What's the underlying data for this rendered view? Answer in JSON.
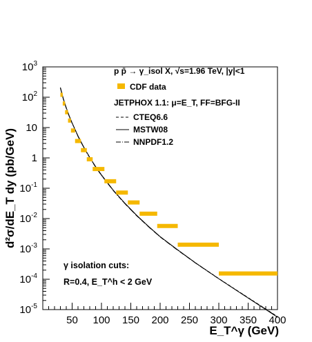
{
  "chart_data": {
    "type": "scatter",
    "xlabel": "E_T^γ (GeV)",
    "ylabel": "d²σ/dE_T dy (pb/GeV)",
    "xlim": [
      0,
      400
    ],
    "ylim": [
      1e-05,
      1000
    ],
    "y_scale": "log",
    "grid": false,
    "x_ticks": [
      50,
      100,
      150,
      200,
      250,
      300,
      350,
      400
    ],
    "y_ticks": [
      {
        "value": 1e-05,
        "base": "10",
        "exp": "-5"
      },
      {
        "value": 0.0001,
        "base": "10",
        "exp": "-4"
      },
      {
        "value": 0.001,
        "base": "10",
        "exp": "-3"
      },
      {
        "value": 0.01,
        "base": "10",
        "exp": "-2"
      },
      {
        "value": 0.1,
        "base": "10",
        "exp": "-1"
      },
      {
        "value": 1,
        "base": "1",
        "exp": ""
      },
      {
        "value": 10,
        "base": "10",
        "exp": ""
      },
      {
        "value": 100,
        "base": "10",
        "exp": "2"
      },
      {
        "value": 1000,
        "base": "10",
        "exp": "3"
      }
    ],
    "legend": {
      "placement": "top-right",
      "process": "p p̄ → γ_isol X, √s=1.96 TeV, |y|<1",
      "data_label": "CDF data",
      "theory_label": "JETPHOX 1.1: μ=E_T, FF=BFG-II"
    },
    "annotation": {
      "line1": "γ isolation cuts:",
      "line2": "R=0.4, E_T^h < 2 GeV"
    },
    "series": [
      {
        "name": "CDF data",
        "kind": "points",
        "color": "#f5b800",
        "points": [
          {
            "x_lo": 30,
            "x_hi": 34,
            "y": 120
          },
          {
            "x_lo": 34,
            "x_hi": 38,
            "y": 62
          },
          {
            "x_lo": 38,
            "x_hi": 43,
            "y": 32
          },
          {
            "x_lo": 43,
            "x_hi": 48,
            "y": 17
          },
          {
            "x_lo": 48,
            "x_hi": 55,
            "y": 8
          },
          {
            "x_lo": 55,
            "x_hi": 65,
            "y": 3.6
          },
          {
            "x_lo": 65,
            "x_hi": 75,
            "y": 1.8
          },
          {
            "x_lo": 75,
            "x_hi": 85,
            "y": 0.9
          },
          {
            "x_lo": 85,
            "x_hi": 105,
            "y": 0.43
          },
          {
            "x_lo": 105,
            "x_hi": 125,
            "y": 0.17
          },
          {
            "x_lo": 125,
            "x_hi": 145,
            "y": 0.072
          },
          {
            "x_lo": 145,
            "x_hi": 165,
            "y": 0.034
          },
          {
            "x_lo": 165,
            "x_hi": 195,
            "y": 0.0145
          },
          {
            "x_lo": 195,
            "x_hi": 230,
            "y": 0.0057
          },
          {
            "x_lo": 230,
            "x_hi": 300,
            "y": 0.00138
          },
          {
            "x_lo": 300,
            "x_hi": 400,
            "y": 0.000155
          }
        ]
      },
      {
        "name": "CTEQ6.6",
        "kind": "line",
        "style": "dashed",
        "color": "#000000",
        "x": [
          30,
          35,
          40,
          45,
          50,
          60,
          70,
          80,
          90,
          100,
          120,
          140,
          160,
          180,
          200,
          230,
          260,
          300,
          340,
          370,
          400
        ],
        "y": [
          205,
          88,
          44,
          24,
          14,
          5.2,
          2.2,
          1.02,
          0.51,
          0.27,
          0.085,
          0.031,
          0.0125,
          0.0055,
          0.0025,
          0.00092,
          0.00035,
          0.000105,
          3.3e-05,
          1.39e-05,
          5.9e-06
        ]
      },
      {
        "name": "MSTW08",
        "kind": "line",
        "style": "solid",
        "color": "#000000",
        "x": [
          30,
          35,
          40,
          45,
          50,
          60,
          70,
          80,
          90,
          100,
          120,
          140,
          160,
          180,
          200,
          230,
          260,
          300,
          340,
          370,
          400
        ],
        "y": [
          210,
          90,
          45,
          24.5,
          14.2,
          5.3,
          2.25,
          1.04,
          0.52,
          0.275,
          0.087,
          0.032,
          0.0128,
          0.0056,
          0.00255,
          0.00093,
          0.00035,
          0.000104,
          3.2e-05,
          1.35e-05,
          5.6e-06
        ]
      },
      {
        "name": "NNPDF1.2",
        "kind": "line",
        "style": "dashdot",
        "color": "#000000",
        "x": [
          30,
          35,
          40,
          45,
          50,
          60,
          70,
          80,
          90,
          100,
          120,
          140,
          160,
          180,
          200,
          230,
          260,
          300,
          340,
          370,
          400
        ],
        "y": [
          200,
          86,
          43,
          23.5,
          13.8,
          5.1,
          2.17,
          1.0,
          0.5,
          0.265,
          0.084,
          0.031,
          0.0124,
          0.0054,
          0.00248,
          0.0009,
          0.000345,
          0.000103,
          3.25e-05,
          1.37e-05,
          5.8e-06
        ]
      }
    ]
  }
}
